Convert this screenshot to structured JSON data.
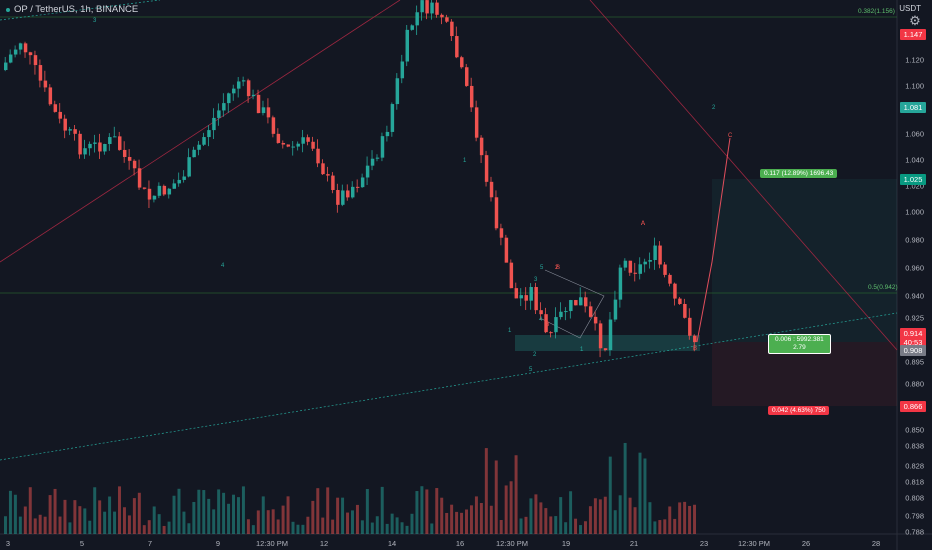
{
  "header": {
    "symbol_line": "OP / TetherUS, 1h, BINANCE",
    "currency": "USDT"
  },
  "chart_data": {
    "type": "candlestick",
    "y_ticks": [
      "1.140",
      "1.120",
      "1.100",
      "1.080",
      "1.060",
      "1.040",
      "1.020",
      "1.000",
      "0.980",
      "0.960",
      "0.940",
      "0.925",
      "0.910",
      "0.895",
      "0.880",
      "0.865",
      "0.850",
      "0.838",
      "0.828",
      "0.818",
      "0.808",
      "0.798",
      "0.788"
    ],
    "x_ticks": [
      "3",
      "5",
      "7",
      "9",
      "12:30 PM",
      "12",
      "14",
      "16",
      "12:30 PM",
      "19",
      "21",
      "23",
      "12:30 PM",
      "26",
      "28"
    ],
    "price_tags": [
      {
        "text": "1.147",
        "color": "#f23645"
      },
      {
        "text": "1.081",
        "color": "#26a69a"
      },
      {
        "text": "1.025",
        "color": "#089981"
      },
      {
        "text": "0.914",
        "color": "#f23645"
      },
      {
        "text": "40:53",
        "color": "#f23645"
      },
      {
        "text": "0.908",
        "color": "#787b86"
      },
      {
        "text": "0.866",
        "color": "#f23645"
      }
    ],
    "fib_labels": [
      "0.382(1.156)",
      "0.5(0.942)"
    ],
    "position_labels": {
      "target": "0.117 (12.89%) 1696.43",
      "entry_line1": "0.006 : 5992.381",
      "entry_line2": "2.79",
      "stop": "0.042 (4.63%) 750"
    },
    "wave_labels": [
      "3",
      "1",
      "4",
      "2",
      "A",
      "B",
      "C",
      "5",
      "3",
      "4",
      "1",
      "2",
      "3",
      "2",
      "1",
      "5",
      "B",
      "A",
      "1"
    ],
    "colors": {
      "up": "#26a69a",
      "down": "#ef5350",
      "background": "#131722"
    }
  }
}
